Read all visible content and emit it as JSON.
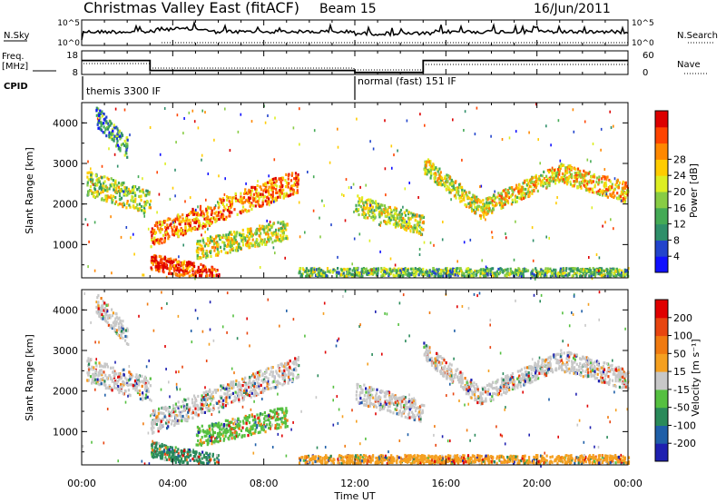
{
  "header": {
    "title": "Christmas Valley East (fitACF)",
    "beam": "Beam 15",
    "date": "16/Jun/2011"
  },
  "params": {
    "nsky_label": "N.Sky",
    "nsky_ticks": [
      "10^5",
      "10^0"
    ],
    "nsearch_label": "N.Search",
    "freq_label": [
      "Freq.",
      "[MHz]"
    ],
    "freq_ticks": [
      "18",
      "8"
    ],
    "nave_ticks": [
      "60",
      "0"
    ],
    "nave_label": "Nave",
    "cpid_label": "CPID",
    "cpid_segments": [
      {
        "label": "themis 3300 IF",
        "start_hour": 0,
        "end_hour": 12
      },
      {
        "label": "normal (fast) 151 IF",
        "start_hour": 12,
        "end_hour": 24
      }
    ],
    "freq_steps": [
      {
        "start_hour": 0,
        "end_hour": 3,
        "level": 15
      },
      {
        "start_hour": 3,
        "end_hour": 12,
        "level": 10
      },
      {
        "start_hour": 12,
        "end_hour": 15,
        "level": 9
      },
      {
        "start_hour": 15,
        "end_hour": 24,
        "level": 15
      }
    ]
  },
  "chart_data": [
    {
      "type": "heatmap",
      "name": "power",
      "ylabel": "Slant Range [km]",
      "ylim": [
        180,
        4500
      ],
      "yticks": [
        "1000",
        "2000",
        "3000",
        "4000"
      ],
      "colorbar_label": "Power [dB]",
      "colorbar_ticks": [
        "4",
        "8",
        "12",
        "16",
        "20",
        "24",
        "28"
      ],
      "colors": [
        "#1010ff",
        "#2244cc",
        "#2f8f6a",
        "#44aa55",
        "#88cc44",
        "#ddee22",
        "#ffcc00",
        "#ff8800",
        "#ff4400",
        "#dd0000"
      ],
      "echo_bands": [
        {
          "start_hour": 0.2,
          "end_hour": 3.0,
          "range_start": 2550,
          "range_end": 2050,
          "width": 300,
          "level": 0.5
        },
        {
          "start_hour": 0.6,
          "end_hour": 2.0,
          "range_start": 4200,
          "range_end": 3400,
          "width": 250,
          "level": 0.3
        },
        {
          "start_hour": 3.0,
          "end_hour": 9.5,
          "range_start": 1250,
          "range_end": 2600,
          "width": 280,
          "level": 0.75
        },
        {
          "start_hour": 3.0,
          "end_hour": 6.0,
          "range_start": 600,
          "range_end": 250,
          "width": 200,
          "level": 0.9
        },
        {
          "start_hour": 5.0,
          "end_hour": 9.0,
          "range_start": 900,
          "range_end": 1400,
          "width": 250,
          "level": 0.55
        },
        {
          "start_hour": 12.0,
          "end_hour": 15.0,
          "range_start": 2000,
          "range_end": 1500,
          "width": 250,
          "level": 0.5
        },
        {
          "start_hour": 15.0,
          "end_hour": 17.5,
          "range_start": 3000,
          "range_end": 1900,
          "width": 220,
          "level": 0.55
        },
        {
          "start_hour": 17.5,
          "end_hour": 21.0,
          "range_start": 1900,
          "range_end": 2800,
          "width": 220,
          "level": 0.6
        },
        {
          "start_hour": 21.0,
          "end_hour": 24.0,
          "range_start": 2800,
          "range_end": 2300,
          "width": 250,
          "level": 0.65
        },
        {
          "start_hour": 9.5,
          "end_hour": 24.0,
          "range_start": 300,
          "range_end": 300,
          "width": 150,
          "level": 0.4
        }
      ]
    },
    {
      "type": "heatmap",
      "name": "velocity",
      "xlabel": "Time UT",
      "ylabel": "Slant Range [km]",
      "ylim": [
        180,
        4500
      ],
      "yticks": [
        "1000",
        "2000",
        "3000",
        "4000"
      ],
      "xticks": [
        "00:00",
        "04:00",
        "08:00",
        "12:00",
        "16:00",
        "20:00",
        "00:00"
      ],
      "colorbar_label": "Velocity [m s⁻¹]",
      "colorbar_ticks": [
        "200",
        "100",
        "50",
        "15",
        "-15",
        "-50",
        "-100",
        "-200"
      ],
      "colors": [
        "#1e20b0",
        "#1f5fa8",
        "#2a8a5a",
        "#55c040",
        "#c8c8c8",
        "#f5a020",
        "#f07a10",
        "#e84510",
        "#e00000"
      ],
      "echo_bands": [
        {
          "start_hour": 0.2,
          "end_hour": 3.0,
          "range_start": 2550,
          "range_end": 2050,
          "width": 300,
          "level": 0.5
        },
        {
          "start_hour": 0.6,
          "end_hour": 2.0,
          "range_start": 4200,
          "range_end": 3400,
          "width": 250,
          "level": 0.5
        },
        {
          "start_hour": 3.0,
          "end_hour": 9.5,
          "range_start": 1250,
          "range_end": 2600,
          "width": 280,
          "level": 0.5
        },
        {
          "start_hour": 3.0,
          "end_hour": 6.0,
          "range_start": 600,
          "range_end": 250,
          "width": 200,
          "level": 0.3
        },
        {
          "start_hour": 5.0,
          "end_hour": 9.0,
          "range_start": 900,
          "range_end": 1400,
          "width": 250,
          "level": 0.35
        },
        {
          "start_hour": 12.0,
          "end_hour": 15.0,
          "range_start": 2000,
          "range_end": 1500,
          "width": 250,
          "level": 0.5
        },
        {
          "start_hour": 15.0,
          "end_hour": 17.5,
          "range_start": 3000,
          "range_end": 1900,
          "width": 220,
          "level": 0.5
        },
        {
          "start_hour": 17.5,
          "end_hour": 21.0,
          "range_start": 1900,
          "range_end": 2800,
          "width": 220,
          "level": 0.5
        },
        {
          "start_hour": 21.0,
          "end_hour": 24.0,
          "range_start": 2800,
          "range_end": 2300,
          "width": 250,
          "level": 0.5
        },
        {
          "start_hour": 9.5,
          "end_hour": 24.0,
          "range_start": 300,
          "range_end": 300,
          "width": 150,
          "level": 0.62
        }
      ]
    }
  ]
}
